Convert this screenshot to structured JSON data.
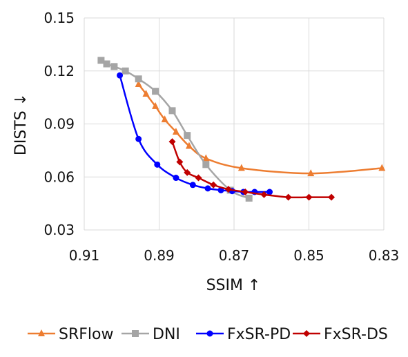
{
  "chart_data": {
    "type": "line",
    "title": "",
    "xlabel": "SSIM ↑",
    "ylabel": "DISTS ↓",
    "xlim": [
      0.91,
      0.83
    ],
    "xreversed": true,
    "ylim": [
      0.03,
      0.15
    ],
    "xticks": [
      "0.91",
      "0.89",
      "0.87",
      "0.85",
      "0.83"
    ],
    "yticks": [
      "0.03",
      "0.06",
      "0.09",
      "0.12",
      "0.15"
    ],
    "grid": "vertical-and-horizontal",
    "legend_position": "bottom",
    "series": [
      {
        "name": "SRFlow",
        "color": "#ED7D31",
        "marker": "triangle",
        "x": [
          0.8955,
          0.8935,
          0.891,
          0.8885,
          0.8855,
          0.882,
          0.8775,
          0.868,
          0.8495,
          0.8305
        ],
        "y": [
          0.1125,
          0.107,
          0.1,
          0.0925,
          0.0855,
          0.0775,
          0.0705,
          0.065,
          0.062,
          0.065
        ]
      },
      {
        "name": "DNI",
        "color": "#A5A5A5",
        "marker": "square",
        "x": [
          0.9055,
          0.904,
          0.902,
          0.899,
          0.8955,
          0.891,
          0.8865,
          0.8825,
          0.8775,
          0.871,
          0.866
        ],
        "y": [
          0.126,
          0.124,
          0.1225,
          0.12,
          0.1155,
          0.1085,
          0.0975,
          0.0835,
          0.067,
          0.0525,
          0.048
        ]
      },
      {
        "name": "FxSR-PD",
        "color": "#0000FF",
        "marker": "circle",
        "x": [
          0.9005,
          0.8955,
          0.8905,
          0.8855,
          0.881,
          0.877,
          0.8735,
          0.8705,
          0.8675,
          0.8645,
          0.8605
        ],
        "y": [
          0.1175,
          0.0815,
          0.067,
          0.0595,
          0.0555,
          0.0535,
          0.0525,
          0.052,
          0.0515,
          0.0515,
          0.0515
        ]
      },
      {
        "name": "FxSR-DS",
        "color": "#C00000",
        "marker": "diamond",
        "x": [
          0.8865,
          0.8845,
          0.8825,
          0.8795,
          0.8755,
          0.8715,
          0.867,
          0.862,
          0.8555,
          0.85,
          0.844
        ],
        "y": [
          0.08,
          0.0685,
          0.0625,
          0.0595,
          0.0555,
          0.053,
          0.0515,
          0.05,
          0.0485,
          0.0485,
          0.0485
        ]
      }
    ]
  }
}
